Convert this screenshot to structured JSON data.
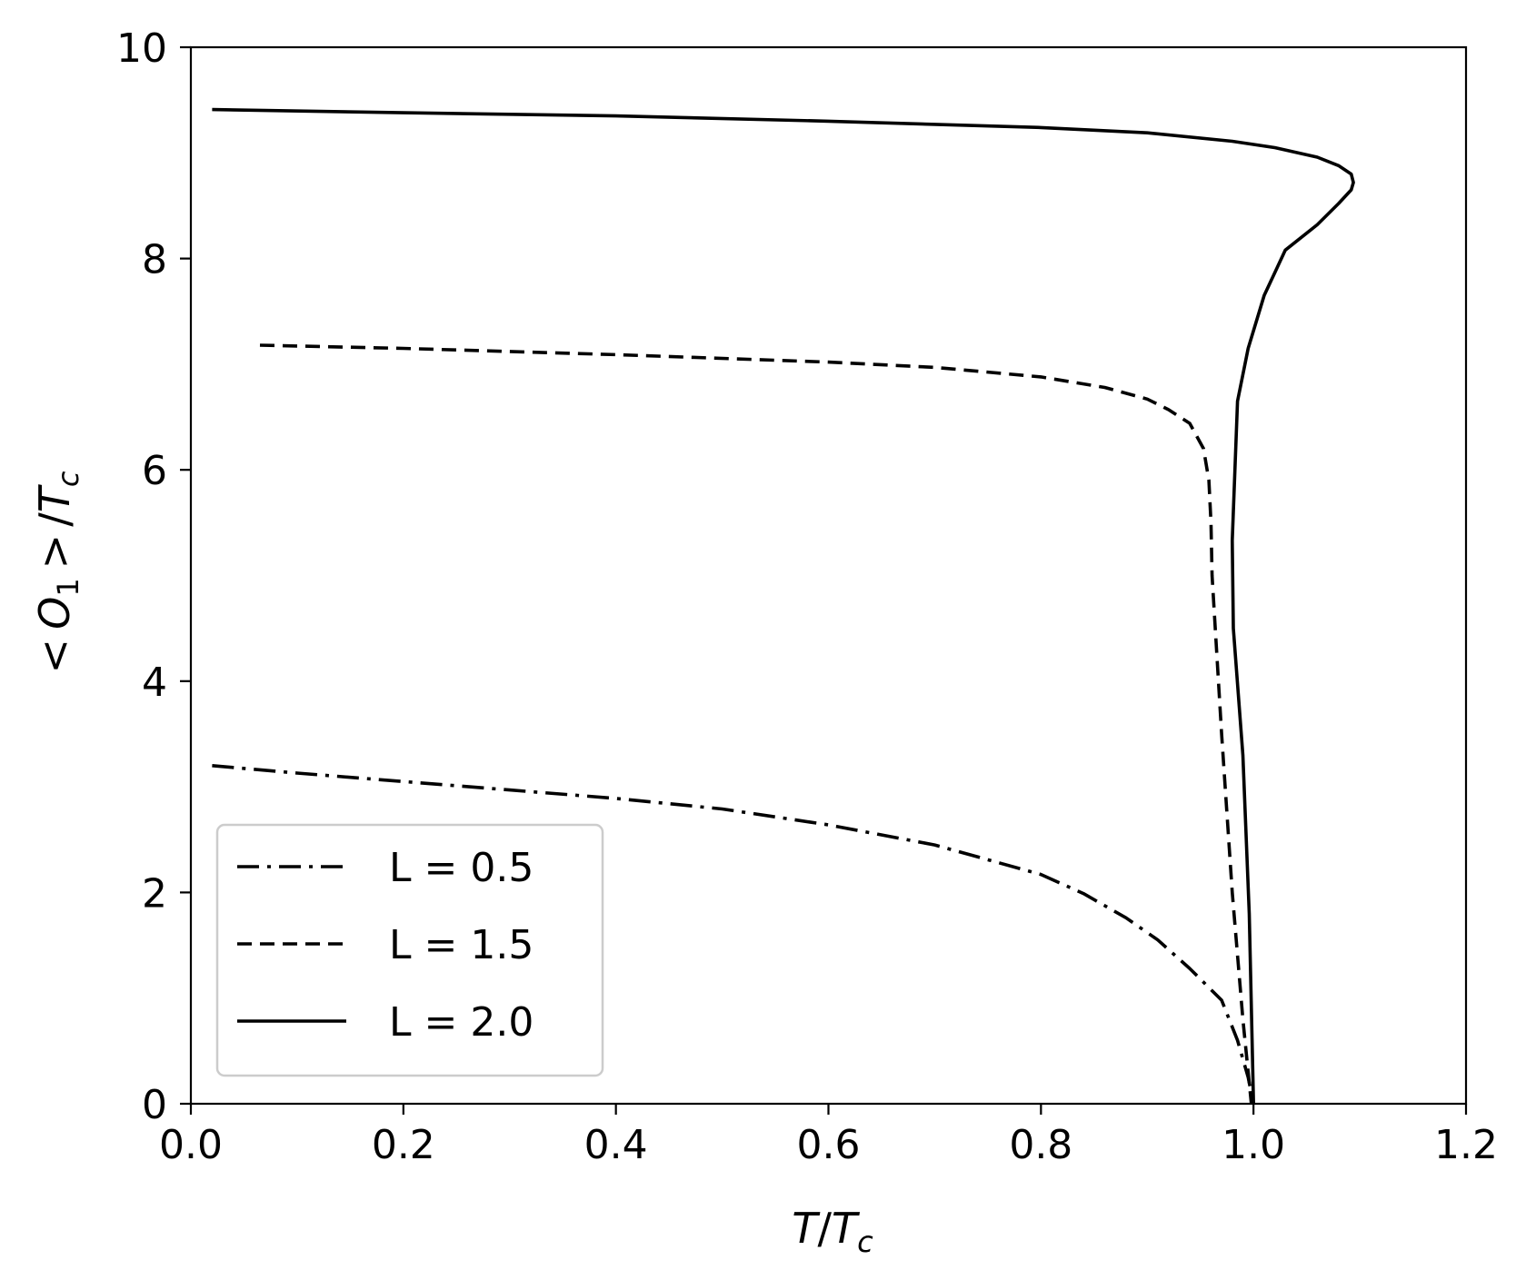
{
  "chart_data": {
    "type": "line",
    "xlabel_parts": [
      "T",
      "/",
      "T",
      "c"
    ],
    "ylabel_parts": [
      "<",
      "O",
      "1",
      ">",
      "/",
      "T",
      "c"
    ],
    "xlim": [
      0.0,
      1.2
    ],
    "ylim": [
      0,
      10
    ],
    "xticks": [
      "0.0",
      "0.2",
      "0.4",
      "0.6",
      "0.8",
      "1.0",
      "1.2"
    ],
    "yticks": [
      "0",
      "2",
      "4",
      "6",
      "8",
      "10"
    ],
    "grid": false,
    "legend_position": "lower-left",
    "line_color": "#000000",
    "series": [
      {
        "name": "L = 0.5",
        "style": "dashdot",
        "x": [
          0.02,
          0.1,
          0.2,
          0.3,
          0.4,
          0.5,
          0.6,
          0.7,
          0.8,
          0.84,
          0.88,
          0.91,
          0.94,
          0.97,
          0.985,
          0.995,
          1.0
        ],
        "y": [
          3.2,
          3.13,
          3.05,
          2.97,
          2.89,
          2.79,
          2.64,
          2.45,
          2.17,
          1.99,
          1.76,
          1.55,
          1.28,
          0.98,
          0.6,
          0.25,
          0.0
        ]
      },
      {
        "name": "L = 1.5",
        "style": "dashed",
        "x": [
          0.065,
          0.2,
          0.4,
          0.6,
          0.7,
          0.8,
          0.86,
          0.9,
          0.92,
          0.94,
          0.953,
          0.958,
          0.96,
          0.961,
          0.97,
          0.98,
          0.99,
          0.998
        ],
        "y": [
          7.18,
          7.15,
          7.09,
          7.02,
          6.97,
          6.88,
          6.78,
          6.67,
          6.57,
          6.44,
          6.2,
          5.9,
          5.5,
          5.0,
          3.5,
          2.0,
          0.8,
          0.0
        ]
      },
      {
        "name": "L = 2.0",
        "style": "solid",
        "x": [
          0.02,
          0.2,
          0.4,
          0.6,
          0.8,
          0.9,
          0.98,
          1.02,
          1.06,
          1.08,
          1.092,
          1.094,
          1.092,
          1.08,
          1.06,
          1.03,
          1.01,
          0.995,
          0.985,
          0.98,
          0.981,
          0.99,
          0.996,
          1.0
        ],
        "y": [
          9.41,
          9.38,
          9.35,
          9.3,
          9.24,
          9.19,
          9.11,
          9.05,
          8.96,
          8.88,
          8.8,
          8.72,
          8.65,
          8.52,
          8.32,
          8.08,
          7.65,
          7.15,
          6.65,
          5.33,
          4.5,
          3.3,
          1.8,
          0.0
        ]
      }
    ]
  }
}
